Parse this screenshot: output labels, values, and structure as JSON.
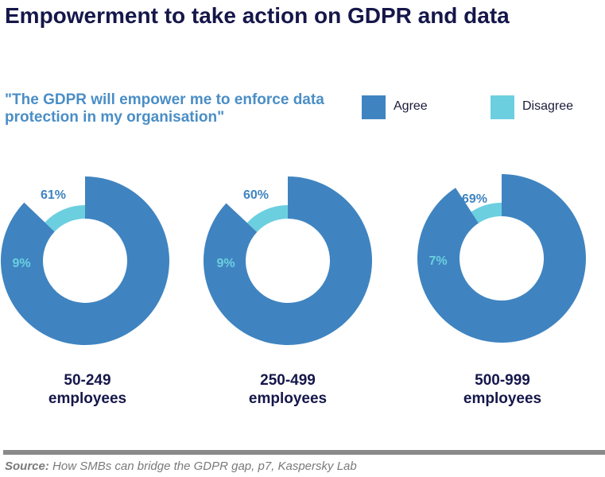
{
  "title": "Empowerment to take action on GDPR and data",
  "colors": {
    "agree": "#3f84c0",
    "disagree": "#6bcfe0",
    "title": "#15174a",
    "subtitle": "#4a8ec6"
  },
  "source": {
    "label": "Source:",
    "text": " How SMBs can bridge the GDPR gap, p7, Kaspersky Lab"
  },
  "chart_data": {
    "type": "pie",
    "subtitle": "\"The GDPR will empower me to enforce data protection in my organisation\"",
    "legend": [
      "Agree",
      "Disagree"
    ],
    "legend_position": "top-right",
    "charts": [
      {
        "label": [
          "50-249",
          "employees"
        ],
        "agree": 61,
        "disagree": 9,
        "agree_label": "61%",
        "disagree_label": "9%"
      },
      {
        "label": [
          "250-499",
          "employees"
        ],
        "agree": 60,
        "disagree": 9,
        "agree_label": "60%",
        "disagree_label": "9%"
      },
      {
        "label": [
          "500-999",
          "employees"
        ],
        "agree": 69,
        "disagree": 7,
        "agree_label": "69%",
        "disagree_label": "7%"
      }
    ]
  }
}
